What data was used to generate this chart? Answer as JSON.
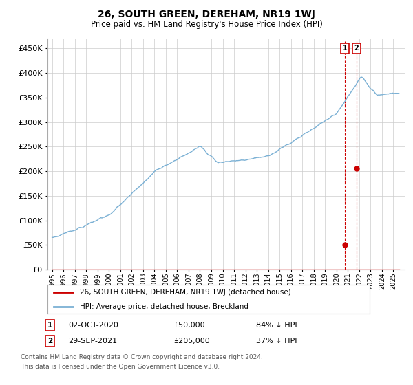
{
  "title": "26, SOUTH GREEN, DEREHAM, NR19 1WJ",
  "subtitle": "Price paid vs. HM Land Registry's House Price Index (HPI)",
  "background_color": "#ffffff",
  "plot_bg_color": "#ffffff",
  "grid_color": "#cccccc",
  "ylim": [
    0,
    470000
  ],
  "yticks": [
    0,
    50000,
    100000,
    150000,
    200000,
    250000,
    300000,
    350000,
    400000,
    450000
  ],
  "hpi_color": "#7ab0d4",
  "price_color": "#cc0000",
  "dashed_color": "#cc0000",
  "transaction1_date": "02-OCT-2020",
  "transaction1_price": 50000,
  "transaction1_pct": "84% ↓ HPI",
  "transaction2_date": "29-SEP-2021",
  "transaction2_price": 205000,
  "transaction2_pct": "37% ↓ HPI",
  "legend_label1": "26, SOUTH GREEN, DEREHAM, NR19 1WJ (detached house)",
  "legend_label2": "HPI: Average price, detached house, Breckland",
  "footnote1": "Contains HM Land Registry data © Crown copyright and database right 2024.",
  "footnote2": "This data is licensed under the Open Government Licence v3.0.",
  "t1_yr": 2020.75,
  "t2_yr": 2021.75
}
